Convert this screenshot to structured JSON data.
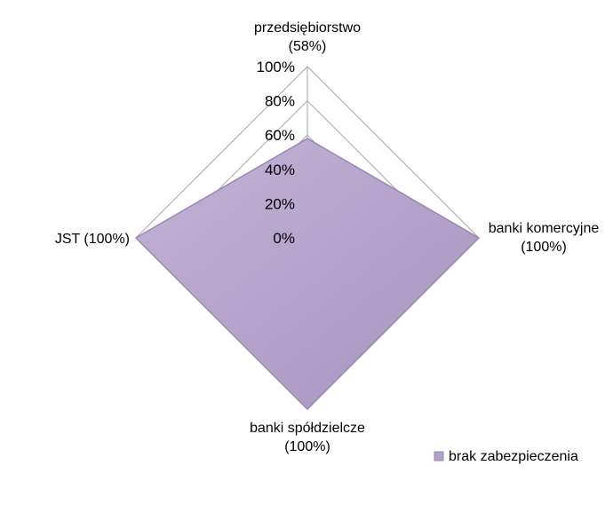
{
  "chart_data": {
    "type": "radar",
    "categories": [
      "przedsiębiorstwo\n(58%)",
      "banki komercyjne\n(100%)",
      "banki spółdzielcze\n(100%)",
      "JST (100%)"
    ],
    "series": [
      {
        "name": "brak zabezpieczenia",
        "values": [
          58,
          100,
          100,
          100
        ]
      }
    ],
    "r_ticks": [
      "0%",
      "20%",
      "40%",
      "60%",
      "80%",
      "100%"
    ],
    "rlim": [
      0,
      100
    ],
    "legend_position": "bottom-right",
    "colors": {
      "fill": "#b3a2c7",
      "stroke": "#9a86b5",
      "grid": "#a6a6a6"
    }
  }
}
